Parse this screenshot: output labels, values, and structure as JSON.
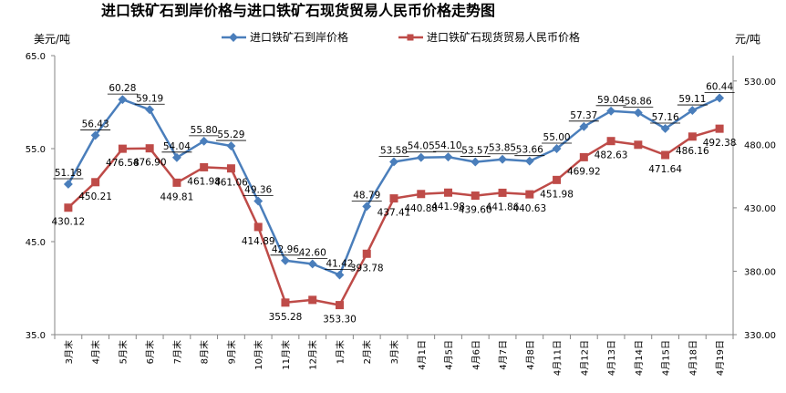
{
  "chart_data": {
    "type": "line",
    "title": "进口铁矿石到岸价格与进口铁矿石现货贸易人民币价格走势图",
    "ylabel_left": "美元/吨",
    "ylabel_right": "元/吨",
    "ylim_left": [
      35.0,
      65.0
    ],
    "yticks_left": [
      "35.0",
      "45.0",
      "55.0",
      "65.0"
    ],
    "ylim_right": [
      330.0,
      550.0
    ],
    "yticks_right": [
      "330.00",
      "380.00",
      "430.00",
      "480.00",
      "530.00"
    ],
    "legend_position": "top",
    "categories": [
      "3月末",
      "4月末",
      "5月末",
      "6月末",
      "7月末",
      "8月末",
      "9月末",
      "10月末",
      "11月末",
      "12月末",
      "1月末",
      "2月末",
      "3月末",
      "4月1日",
      "4月5日",
      "4月6日",
      "4月7日",
      "4月8日",
      "4月11日",
      "4月12日",
      "4月13日",
      "4月14日",
      "4月15日",
      "4月18日",
      "4月19日"
    ],
    "series": [
      {
        "name": "进口铁矿石到岸价格",
        "axis": "left",
        "color": "#4a7ebb",
        "marker": "diamond",
        "values": [
          51.18,
          56.43,
          60.28,
          59.19,
          54.04,
          55.8,
          55.29,
          49.36,
          42.96,
          42.6,
          41.42,
          48.79,
          53.58,
          54.05,
          54.1,
          53.57,
          53.85,
          53.66,
          55.0,
          57.37,
          59.04,
          58.86,
          57.16,
          59.11,
          60.44
        ],
        "labels": [
          "51.18",
          "56.43",
          "60.28",
          "59.19",
          "54.04",
          "55.80",
          "55.29",
          "49.36",
          "42.96",
          "42.60",
          "41.42",
          "48.79",
          "53.58",
          "54.05",
          "54.10",
          "53.57",
          "53.85",
          "53.66",
          "55.00",
          "57.37",
          "59.04",
          "58.86",
          "57.16",
          "59.11",
          "60.44"
        ]
      },
      {
        "name": "进口铁矿石现货贸易人民币价格",
        "axis": "right",
        "color": "#be4b48",
        "marker": "square",
        "values": [
          430.12,
          450.21,
          476.58,
          476.9,
          449.81,
          461.98,
          461.06,
          414.89,
          355.28,
          357.4,
          353.3,
          393.78,
          437.41,
          440.88,
          441.98,
          439.6,
          441.86,
          440.63,
          451.98,
          469.92,
          482.63,
          479.7,
          471.64,
          486.16,
          492.38
        ],
        "labels": [
          "430.12",
          "450.21",
          "476.58",
          "476.90",
          "449.81",
          "461.98",
          "461.06",
          "414.89",
          "355.28",
          "",
          "353.30",
          "393.78",
          "437.41",
          "440.88",
          "441.98",
          "439.60",
          "441.86",
          "440.63",
          "451.98",
          "469.92",
          "482.63",
          "",
          "471.64",
          "486.16",
          "492.38"
        ]
      }
    ]
  }
}
